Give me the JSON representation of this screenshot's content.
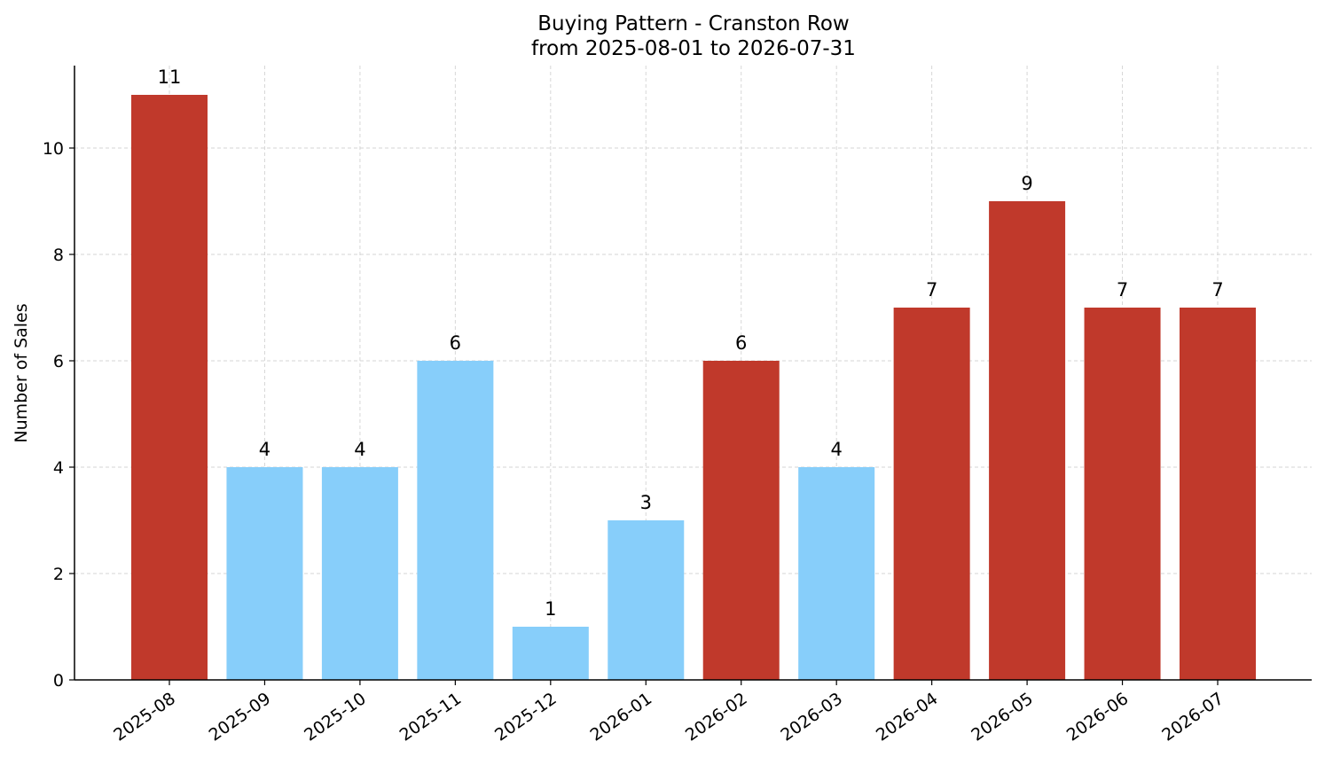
{
  "chart_data": {
    "type": "bar",
    "title": "Buying Pattern - Cranston Row",
    "subtitle": "from 2025-08-01 to 2026-07-31",
    "xlabel": "",
    "ylabel": "Number of Sales",
    "categories": [
      "2025-08",
      "2025-09",
      "2025-10",
      "2025-11",
      "2025-12",
      "2026-01",
      "2026-02",
      "2026-03",
      "2026-04",
      "2026-05",
      "2026-06",
      "2026-07"
    ],
    "values": [
      11,
      4,
      4,
      6,
      1,
      3,
      6,
      4,
      7,
      9,
      7,
      7
    ],
    "bar_colors": [
      "#c0392b",
      "#87cefa",
      "#87cefa",
      "#87cefa",
      "#87cefa",
      "#87cefa",
      "#c0392b",
      "#87cefa",
      "#c0392b",
      "#c0392b",
      "#c0392b",
      "#c0392b"
    ],
    "data_labels": [
      "11",
      "4",
      "4",
      "6",
      "1",
      "3",
      "6",
      "4",
      "7",
      "9",
      "7",
      "7"
    ],
    "ylim": [
      0,
      11.55
    ],
    "yticks": [
      0,
      2,
      4,
      6,
      8,
      10
    ],
    "grid": true
  }
}
